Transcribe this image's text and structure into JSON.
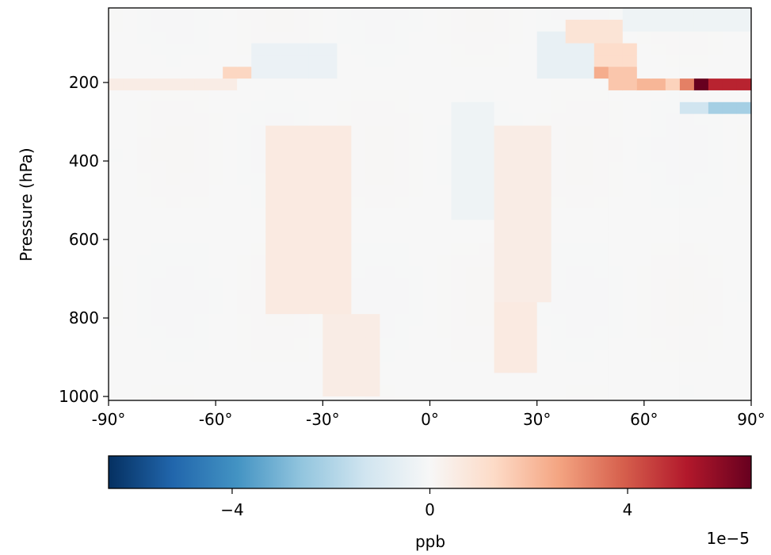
{
  "chart_data": {
    "type": "heatmap",
    "title": "",
    "xlabel": "",
    "ylabel": "Pressure (hPa)",
    "x_ticks": [
      "-90°",
      "-60°",
      "-30°",
      "0°",
      "30°",
      "60°",
      "90°"
    ],
    "x_tick_values": [
      -90,
      -60,
      -30,
      0,
      30,
      60,
      90
    ],
    "xlim": [
      -90,
      90
    ],
    "y_ticks": [
      "200",
      "400",
      "600",
      "800",
      "1000"
    ],
    "y_tick_values": [
      200,
      400,
      600,
      800,
      1000
    ],
    "ylim": [
      1010,
      10
    ],
    "y_inverted": true,
    "colorbar": {
      "label": "ppb",
      "scale_note": "1e−5",
      "ticks": [
        "−4",
        "0",
        "4"
      ],
      "tick_values": [
        -4,
        0,
        4
      ],
      "range": [
        -6.5,
        6.5
      ],
      "colormap": "RdBu_r",
      "colors": [
        "#053061",
        "#2166ac",
        "#4393c3",
        "#92c5de",
        "#d1e5f0",
        "#f7f7f7",
        "#fddbc7",
        "#f4a582",
        "#d6604d",
        "#b2182b",
        "#67001f"
      ]
    },
    "units_multiplier": 1e-05,
    "features": [
      {
        "lat_range": [
          -56,
          -48
        ],
        "p_range": [
          150,
          190
        ],
        "value": 1.4
      },
      {
        "lat_range": [
          -90,
          -54
        ],
        "p_range": [
          180,
          210
        ],
        "value": 0.5
      },
      {
        "lat_range": [
          -48,
          -25
        ],
        "p_range": [
          100,
          180
        ],
        "value": -0.4
      },
      {
        "lat_range": [
          -45,
          -20
        ],
        "p_range": [
          300,
          800
        ],
        "value": 0.6
      },
      {
        "lat_range": [
          -30,
          -15
        ],
        "p_range": [
          800,
          1000
        ],
        "value": 0.5
      },
      {
        "lat_range": [
          20,
          35
        ],
        "p_range": [
          300,
          750
        ],
        "value": 0.5
      },
      {
        "lat_range": [
          20,
          32
        ],
        "p_range": [
          750,
          950
        ],
        "value": 0.6
      },
      {
        "lat_range": [
          5,
          20
        ],
        "p_range": [
          250,
          550
        ],
        "value": -0.3
      },
      {
        "lat_range": [
          30,
          48
        ],
        "p_range": [
          60,
          190
        ],
        "value": -0.5
      },
      {
        "lat_range": [
          40,
          55
        ],
        "p_range": [
          40,
          90
        ],
        "value": 0.9
      },
      {
        "lat_range": [
          48,
          60
        ],
        "p_range": [
          90,
          150
        ],
        "value": 1.2
      },
      {
        "lat_range": [
          48,
          52
        ],
        "p_range": [
          150,
          180
        ],
        "value": 2.4
      },
      {
        "lat_range": [
          52,
          60
        ],
        "p_range": [
          150,
          210
        ],
        "value": 1.8
      },
      {
        "lat_range": [
          60,
          66
        ],
        "p_range": [
          180,
          210
        ],
        "value": 2.2
      },
      {
        "lat_range": [
          66,
          72
        ],
        "p_range": [
          180,
          210
        ],
        "value": 1.5
      },
      {
        "lat_range": [
          72,
          76
        ],
        "p_range": [
          180,
          210
        ],
        "value": 3.3
      },
      {
        "lat_range": [
          76,
          80
        ],
        "p_range": [
          180,
          210
        ],
        "value": 6.5
      },
      {
        "lat_range": [
          80,
          90
        ],
        "p_range": [
          180,
          210
        ],
        "value": 5.0
      },
      {
        "lat_range": [
          72,
          80
        ],
        "p_range": [
          240,
          290
        ],
        "value": -1.3
      },
      {
        "lat_range": [
          80,
          90
        ],
        "p_range": [
          240,
          290
        ],
        "value": -2.2
      },
      {
        "lat_range": [
          55,
          90
        ],
        "p_range": [
          10,
          80
        ],
        "value": -0.3
      }
    ]
  }
}
